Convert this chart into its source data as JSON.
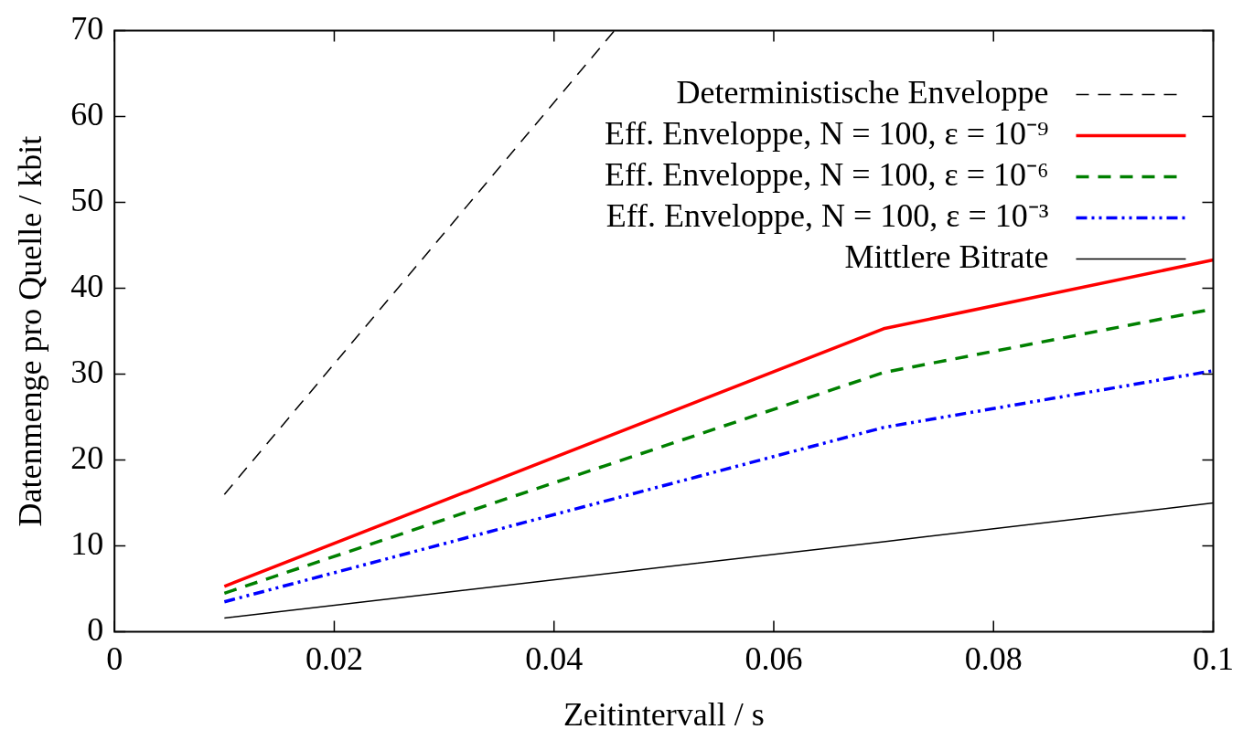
{
  "chart_data": {
    "type": "line",
    "xlabel": "Zeitintervall / s",
    "ylabel": "Datenmenge pro Quelle / kbit",
    "xlim": [
      0,
      0.1
    ],
    "xticks": [
      0,
      0.02,
      0.04,
      0.06,
      0.08,
      0.1
    ],
    "ylim": [
      0,
      70
    ],
    "yticks": [
      0,
      10,
      20,
      30,
      40,
      50,
      60,
      70
    ],
    "grid": false,
    "legend": "top right",
    "marker": "none",
    "series": [
      {
        "name": "Deterministische Enveloppe",
        "color": "#000000",
        "line_style": "dashed",
        "x": [
          0.01,
          0.0455
        ],
        "values": [
          16,
          70
        ]
      },
      {
        "name": "Eff. Enveloppe, N = 100, ε = 10⁻⁹",
        "color": "#ff0000",
        "line_style": "solid",
        "x": [
          0.01,
          0.07,
          0.1
        ],
        "values": [
          5.3,
          35.3,
          43.3
        ]
      },
      {
        "name": "Eff. Enveloppe, N = 100, ε = 10⁻⁶",
        "color": "#008000",
        "line_style": "dashed",
        "x": [
          0.01,
          0.07,
          0.1
        ],
        "values": [
          4.5,
          30.2,
          37.6
        ]
      },
      {
        "name": "Eff. Enveloppe, N = 100, ε = 10⁻³",
        "color": "#0000ff",
        "line_style": "dotted",
        "x": [
          0.01,
          0.07,
          0.1
        ],
        "values": [
          3.5,
          23.8,
          30.4
        ]
      },
      {
        "name": "Mittlere Bitrate",
        "color": "#000000",
        "line_style": "solid",
        "x": [
          0.01,
          0.07,
          0.1
        ],
        "values": [
          1.6,
          10.5,
          15
        ]
      }
    ]
  }
}
